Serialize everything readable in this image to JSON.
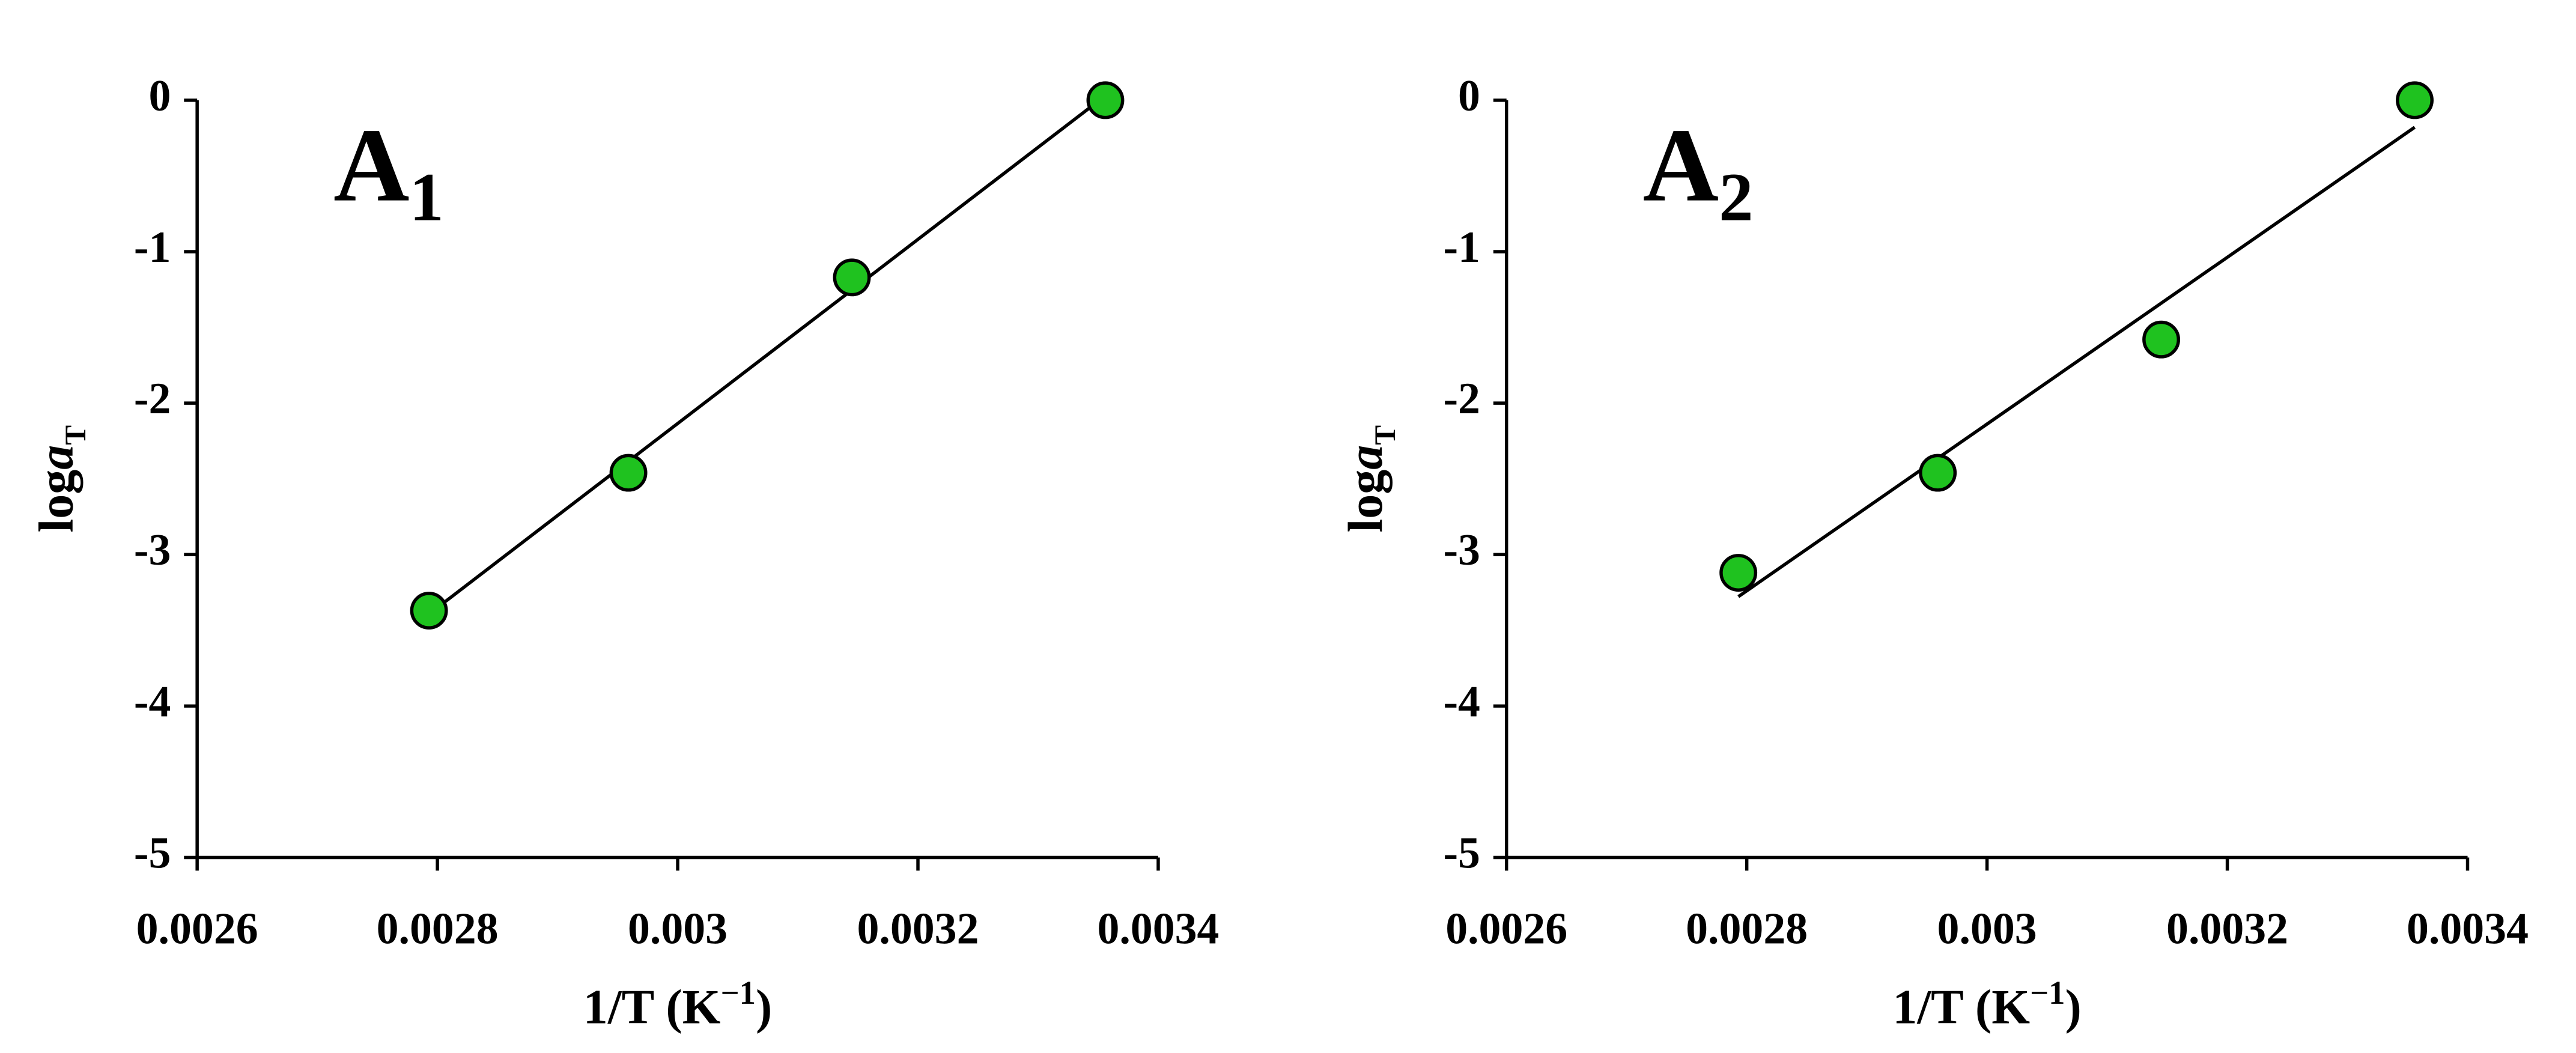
{
  "chart_data": [
    {
      "type": "scatter",
      "panel_label": "A",
      "panel_subscript": "1",
      "xlabel": {
        "main": "1/T (K",
        "sup": "−1",
        "end": ")"
      },
      "ylabel": {
        "main": "log",
        "var": "a",
        "sub": "T"
      },
      "xlim": [
        0.0026,
        0.0034
      ],
      "xticks": [
        0.0026,
        0.0028,
        0.003,
        0.0032,
        0.0034
      ],
      "ylim": [
        -5,
        0
      ],
      "yticks": [
        0,
        -1,
        -2,
        -3,
        -4,
        -5
      ],
      "trendline": "linear",
      "series": [
        {
          "color": "#1fc21f",
          "x": [
            0.002793,
            0.002959,
            0.003145,
            0.003356
          ],
          "values": [
            -3.37,
            -2.46,
            -1.17,
            0
          ]
        }
      ]
    },
    {
      "type": "scatter",
      "panel_label": "A",
      "panel_subscript": "2",
      "xlabel": {
        "main": "1/T (K",
        "sup": "−1",
        "end": ")"
      },
      "ylabel": {
        "main": "log",
        "var": "a",
        "sub": "T"
      },
      "xlim": [
        0.0026,
        0.0034
      ],
      "xticks": [
        0.0026,
        0.0028,
        0.003,
        0.0032,
        0.0034
      ],
      "ylim": [
        -5,
        0
      ],
      "yticks": [
        0,
        -1,
        -2,
        -3,
        -4,
        -5
      ],
      "trendline": "linear",
      "series": [
        {
          "color": "#1fc21f",
          "x": [
            0.002793,
            0.002959,
            0.003145,
            0.003356
          ],
          "values": [
            -3.12,
            -2.46,
            -1.58,
            0
          ]
        }
      ]
    }
  ]
}
